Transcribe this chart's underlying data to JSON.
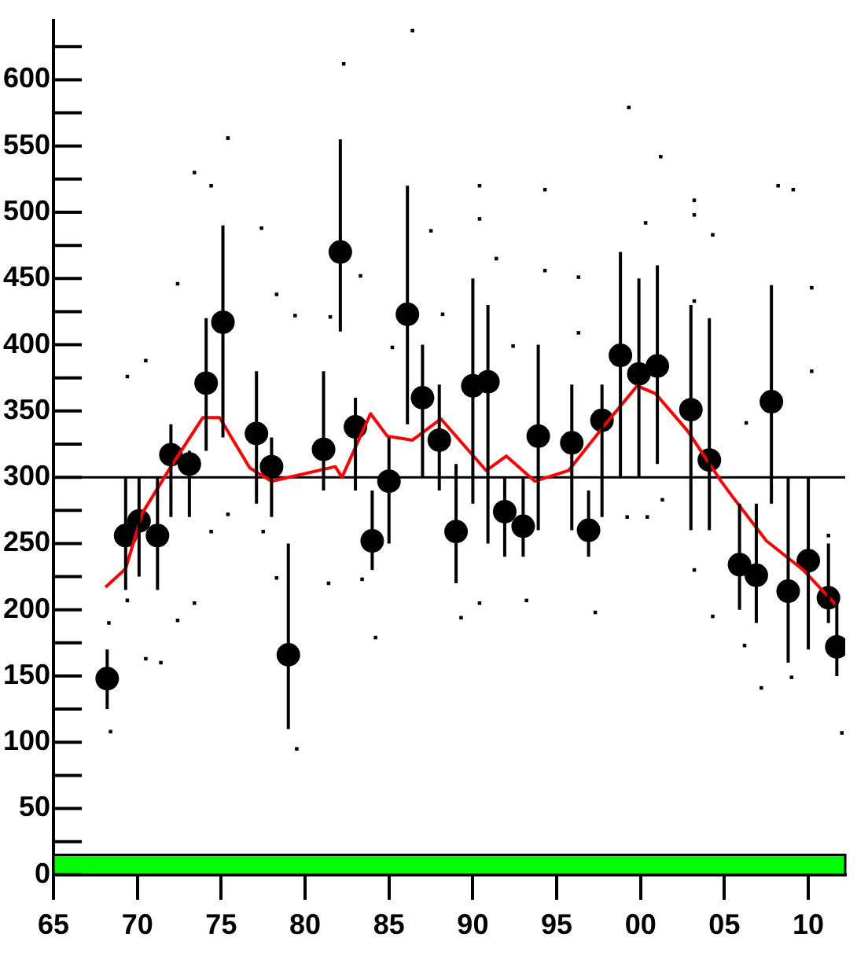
{
  "chart_data": {
    "type": "scatter",
    "xlim": [
      1965,
      2012.2
    ],
    "xticks": [
      {
        "value": 1965,
        "label": "65"
      },
      {
        "value": 1970,
        "label": "70"
      },
      {
        "value": 1975,
        "label": "75"
      },
      {
        "value": 1980,
        "label": "80"
      },
      {
        "value": 1985,
        "label": "85"
      },
      {
        "value": 1990,
        "label": "90"
      },
      {
        "value": 1995,
        "label": "95"
      },
      {
        "value": 2000,
        "label": "00"
      },
      {
        "value": 2005,
        "label": "05"
      },
      {
        "value": 2010,
        "label": "10"
      }
    ],
    "ylim": [
      0,
      645
    ],
    "yticks": [
      0,
      {
        "value": 25,
        "label": null
      },
      50,
      {
        "value": 75,
        "label": null
      },
      100,
      {
        "value": 125,
        "label": null
      },
      150,
      {
        "value": 175,
        "label": null
      },
      200,
      {
        "value": 225,
        "label": null
      },
      250,
      {
        "value": 275,
        "label": null
      },
      300,
      {
        "value": 325,
        "label": null
      },
      350,
      {
        "value": 375,
        "label": null
      },
      400,
      {
        "value": 425,
        "label": null
      },
      450,
      {
        "value": 475,
        "label": null
      },
      500,
      {
        "value": 525,
        "label": null
      },
      550,
      {
        "value": 575,
        "label": null
      },
      600,
      {
        "value": 625,
        "label": null
      }
    ],
    "grid": false,
    "legend": false,
    "ref_lines": [
      {
        "axis": "y",
        "value": 300,
        "color": "#000000",
        "line_style": "solid"
      }
    ],
    "bands": [
      {
        "axis": "y",
        "from": 0,
        "to": 15,
        "color": "#00ff00"
      }
    ],
    "series": [
      {
        "marker": "square",
        "color": "#000000",
        "x": [
          1969.4,
          1970.5,
          1972.4,
          1973.4,
          1974.4,
          1975.4,
          1977.4,
          1978.3,
          1979.4,
          1982.3,
          1983.3,
          1985.2,
          1986.4,
          1987.5,
          1988.2,
          1981.5,
          1990.4,
          1990.4,
          1991.4,
          1992.4,
          1994.3,
          1994.3,
          1996.3,
          1996.3,
          1999.3,
          2001.2,
          2000.3,
          2003.2,
          2003.2,
          2004.3,
          2003.2,
          2008.2,
          2009.1,
          2010.2,
          2010.2,
          2006.3,
          1968.3,
          1968.4,
          1969.4,
          1970.5,
          1971.4,
          1972.4,
          1973.4,
          1975.4,
          1974.4,
          1977.5,
          1978.3,
          1979.5,
          1981.4,
          1984.2,
          1983.4,
          1989.3,
          1990.4,
          1993.2,
          1997.3,
          1999.2,
          2000.4,
          2001.3,
          2003.2,
          2004.3,
          2006.2,
          2007.2,
          2009,
          2012,
          2011.2
        ],
        "values": [
          376,
          388,
          446,
          530,
          520,
          556,
          488,
          438,
          422,
          612,
          452,
          398,
          637,
          486,
          423,
          421,
          520,
          495,
          465,
          399,
          517,
          456,
          451,
          409,
          579,
          542,
          492,
          509,
          498,
          483,
          433,
          520,
          517,
          443,
          380,
          341,
          190,
          108,
          207,
          163,
          160,
          192,
          205,
          272,
          259,
          259,
          224,
          95,
          220,
          179,
          223,
          194,
          205,
          207,
          198,
          270,
          270,
          283,
          230,
          195,
          173,
          141,
          149,
          107,
          256
        ]
      },
      {
        "marker": "circle",
        "color": "#000000",
        "x": [
          1968.2,
          1969.3,
          1970.1,
          1971.2,
          1972,
          1973.1,
          1974.1,
          1975.1,
          1977.1,
          1978,
          1979,
          1981.1,
          1982.1,
          1983,
          1984,
          1985,
          1986.1,
          1987,
          1988,
          1989,
          1990,
          1990.9,
          1991.9,
          1993,
          1993.9,
          1995.9,
          1996.9,
          1997.7,
          1998.8,
          1999.9,
          2001,
          2003,
          2004.1,
          2005.9,
          2006.9,
          2007.8,
          2008.8,
          2010,
          2011.2,
          2011.7
        ],
        "values": [
          148,
          256,
          267,
          256,
          317,
          310,
          371,
          417,
          333,
          308,
          166,
          321,
          470,
          338,
          252,
          297,
          423,
          360,
          328,
          259,
          369,
          372,
          274,
          263,
          331,
          326,
          260,
          343,
          392,
          378,
          384,
          351,
          313,
          234,
          226,
          357,
          214,
          237,
          209,
          172
        ],
        "errors": [
          [
            125,
            170
          ],
          [
            215,
            300
          ],
          [
            225,
            300
          ],
          [
            215,
            300
          ],
          [
            270,
            340
          ],
          [
            270,
            320
          ],
          [
            320,
            420
          ],
          [
            330,
            490
          ],
          [
            280,
            380
          ],
          [
            270,
            330
          ],
          [
            110,
            250
          ],
          [
            290,
            380
          ],
          [
            410,
            555
          ],
          [
            290,
            360
          ],
          [
            230,
            290
          ],
          [
            250,
            330
          ],
          [
            340,
            520
          ],
          [
            300,
            400
          ],
          [
            290,
            370
          ],
          [
            220,
            310
          ],
          [
            280,
            450
          ],
          [
            250,
            430
          ],
          [
            240,
            300
          ],
          [
            240,
            300
          ],
          [
            260,
            400
          ],
          [
            260,
            370
          ],
          [
            240,
            290
          ],
          [
            270,
            370
          ],
          [
            300,
            470
          ],
          [
            300,
            450
          ],
          [
            310,
            460
          ],
          [
            260,
            430
          ],
          [
            260,
            420
          ],
          [
            200,
            280
          ],
          [
            190,
            280
          ],
          [
            280,
            445
          ],
          [
            160,
            300
          ],
          [
            170,
            300
          ],
          [
            190,
            250
          ],
          [
            150,
            210
          ]
        ]
      },
      {
        "type": "line",
        "marker": "none",
        "color": "#ff0000",
        "x": [
          1968.1,
          1969.3,
          1970.3,
          1972,
          1973.9,
          1974.9,
          1976.7,
          1978,
          1981.8,
          1982.2,
          1983.9,
          1984.9,
          1986.4,
          1988.1,
          1990.8,
          1992,
          1993.7,
          1995.7,
          1997.9,
          1999.8,
          2000.9,
          2002.8,
          2004.8,
          2005.5,
          2007.5,
          2009.7,
          2011.7
        ],
        "values": [
          217,
          231,
          273,
          308,
          345,
          345,
          307,
          297,
          308,
          300,
          348,
          331,
          328,
          344,
          305,
          316,
          297,
          305,
          340,
          369,
          363,
          335,
          297,
          285,
          252,
          230,
          203
        ]
      }
    ]
  }
}
